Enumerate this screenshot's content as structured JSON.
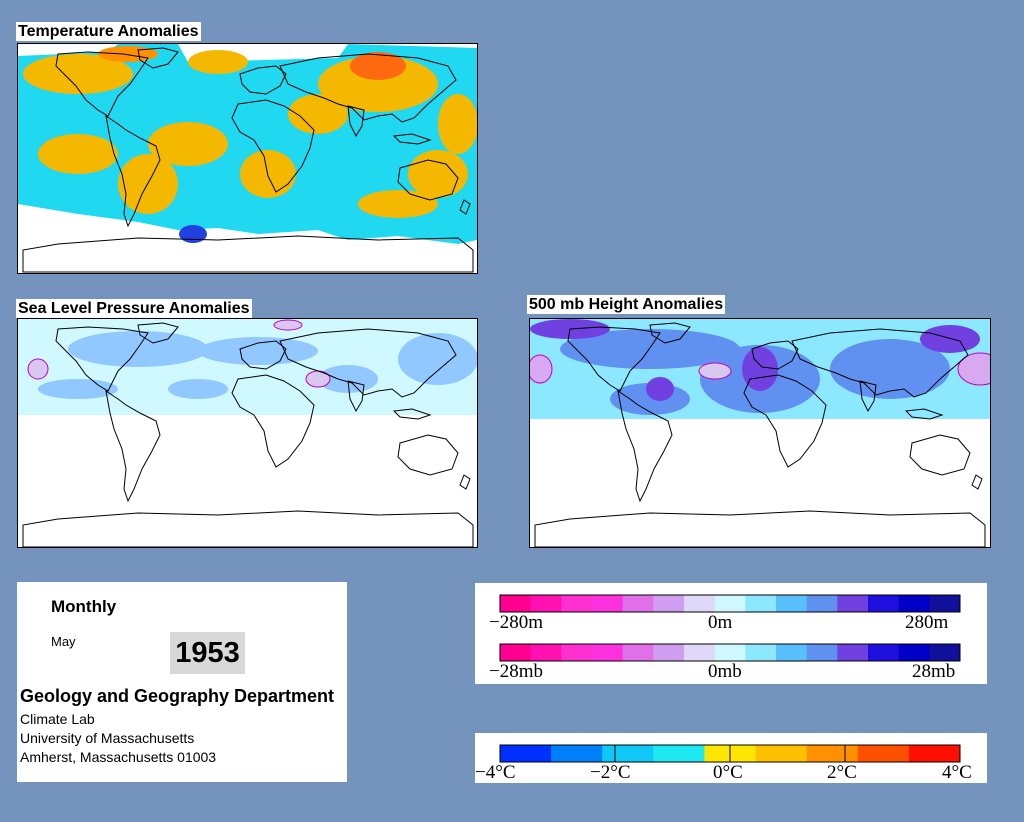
{
  "maps": {
    "temperature_title": "Temperature Anomalies",
    "slp_title": "Sea Level Pressure Anomalies",
    "height_title": "500 mb Height Anomalies"
  },
  "info": {
    "period": "Monthly",
    "month": "May",
    "year": "1953",
    "department": "Geology and Geography Department",
    "lab": "Climate Lab",
    "university": "University of Massachusetts",
    "address": "Amherst, Massachusetts 01003"
  },
  "legends": {
    "height": {
      "min_label": "−280m",
      "mid_label": "0m",
      "max_label": "280m",
      "colors": [
        "#ff0090",
        "#ff10b0",
        "#ff30d0",
        "#ff30e0",
        "#e070e8",
        "#d09ef0",
        "#e0d8f8",
        "#d0f8ff",
        "#8ce8ff",
        "#58c0ff",
        "#6090f0",
        "#7040e0",
        "#2010e0",
        "#0000c8",
        "#10109a"
      ]
    },
    "pressure": {
      "min_label": "−28mb",
      "mid_label": "0mb",
      "max_label": "28mb",
      "colors": [
        "#ff0090",
        "#ff10b0",
        "#ff30d0",
        "#ff30e0",
        "#e070e8",
        "#d09ef0",
        "#e0d8f8",
        "#d0f8ff",
        "#8ce8ff",
        "#58c0ff",
        "#6090f0",
        "#7040e0",
        "#2010e0",
        "#0000c8",
        "#10109a"
      ]
    },
    "temperature": {
      "labels": [
        "−4°C",
        "−2°C",
        "0°C",
        "2°C",
        "4°C"
      ],
      "colors": [
        "#0030ff",
        "#0080f8",
        "#10c8f8",
        "#20e8f0",
        "#ffe600",
        "#ffc000",
        "#ff9000",
        "#ff5000",
        "#ff1000"
      ]
    }
  },
  "colors": {
    "background": "#7494bd",
    "land_warm": "#f5b800",
    "ocean_cool": "#20d8f0",
    "pressure_neg": "#90c8ff",
    "pressure_pos": "#d8c8f0"
  }
}
